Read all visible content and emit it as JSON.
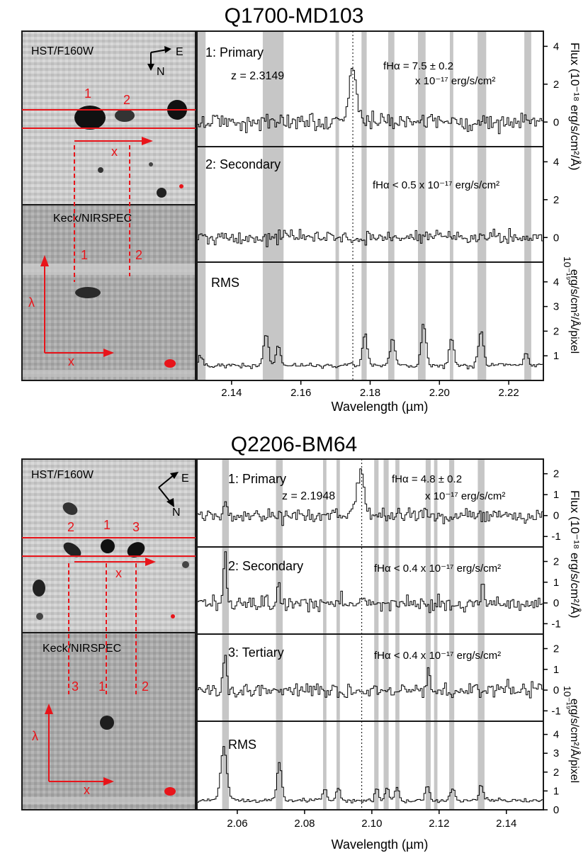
{
  "colors": {
    "marker": "#e8141a",
    "band": "#c6c6c6",
    "frame": "#1a1a1a",
    "line": "#000000"
  },
  "figures": [
    {
      "title": "Q1700-MD103",
      "hst_label": "HST/F160W",
      "keck_label": "Keck/NIRSPEC",
      "compass": {
        "east": "E",
        "north": "N"
      },
      "image_labels": [
        "1",
        "2"
      ],
      "slit_labels": [
        "1",
        "2"
      ],
      "x_symbol": "x",
      "lambda_symbol": "λ",
      "xlabel": "Wavelength (µm)",
      "xticks": [
        "2.14",
        "2.16",
        "2.18",
        "2.20",
        "2.22"
      ],
      "ylabel_flux": "Flux (10⁻¹⁸ erg/s/cm²/Å)",
      "ylabel_rms_1": "10⁻¹⁹",
      "ylabel_rms_2": "erg/s/cm²/Å/pixel",
      "panels": [
        {
          "label": "1: Primary",
          "z": "z = 2.3149",
          "flux": "fHα = 7.5 ± 0.2",
          "flux2": "x 10⁻¹⁷ erg/s/cm²",
          "yticks": [
            "4",
            "2",
            "0"
          ]
        },
        {
          "label": "2: Secondary",
          "flux": "fHα < 0.5 x 10⁻¹⁷ erg/s/cm²",
          "yticks": [
            "4",
            "2",
            "0"
          ]
        },
        {
          "label": "RMS",
          "yticks": [
            "4",
            "3",
            "2",
            "1"
          ]
        }
      ]
    },
    {
      "title": "Q2206-BM64",
      "hst_label": "HST/F160W",
      "keck_label": "Keck/NIRSPEC",
      "compass": {
        "east": "E",
        "north": "N"
      },
      "image_labels": [
        "2",
        "1",
        "3"
      ],
      "slit_labels": [
        "3",
        "1",
        "2"
      ],
      "x_symbol": "x",
      "lambda_symbol": "λ",
      "xlabel": "Wavelength (µm)",
      "xticks": [
        "2.06",
        "2.08",
        "2.10",
        "2.12",
        "2.14"
      ],
      "ylabel_flux": "Flux (10⁻¹⁸ erg/s/cm²/Å)",
      "ylabel_rms_1": "10⁻¹⁹",
      "ylabel_rms_2": "erg/s/cm²/Å/pixel",
      "panels": [
        {
          "label": "1: Primary",
          "z": "z = 2.1948",
          "flux": "fHα = 4.8 ± 0.2",
          "flux2": "x 10⁻¹⁷ erg/s/cm²",
          "yticks": [
            "2",
            "1",
            "0",
            "-1"
          ]
        },
        {
          "label": "2: Secondary",
          "flux": "fHα < 0.4 x 10⁻¹⁷ erg/s/cm²",
          "yticks": [
            "2",
            "1",
            "0",
            "-1"
          ]
        },
        {
          "label": "3: Tertiary",
          "flux": "fHα < 0.4 x 10⁻¹⁷ erg/s/cm²",
          "yticks": [
            "2",
            "1",
            "0",
            "-1"
          ]
        },
        {
          "label": "RMS",
          "yticks": [
            "4",
            "3",
            "2",
            "1",
            "0"
          ]
        }
      ]
    }
  ],
  "chart_data": [
    {
      "type": "line",
      "title": "Q1700-MD103",
      "xlabel": "Wavelength (µm)",
      "xlim": [
        2.13,
        2.23
      ],
      "xticks": [
        2.14,
        2.16,
        2.18,
        2.2,
        2.22
      ],
      "line_center": 2.175,
      "sky_bands": [
        [
          2.13,
          2.1325
        ],
        [
          2.149,
          2.155
        ],
        [
          2.17,
          2.171
        ],
        [
          2.1775,
          2.179
        ],
        [
          2.1852,
          2.187
        ],
        [
          2.1938,
          2.196
        ],
        [
          2.203,
          2.204
        ],
        [
          2.211,
          2.2135
        ],
        [
          2.2245,
          2.2265
        ]
      ],
      "panels": [
        {
          "name": "1: Primary",
          "ylim": [
            -1.3,
            4.8
          ],
          "yticks": [
            0,
            2,
            4
          ],
          "peaks": [
            {
              "x": 2.175,
              "amp": 3.0,
              "width": 0.0011
            }
          ],
          "noise": 0.35
        },
        {
          "name": "2: Secondary",
          "ylim": [
            -1.3,
            4.8
          ],
          "yticks": [
            0,
            2,
            4
          ],
          "peaks": [],
          "noise": 0.25
        },
        {
          "name": "RMS",
          "ylim": [
            0,
            4.8
          ],
          "yticks": [
            1,
            2,
            3,
            4
          ],
          "baseline": 0.6,
          "noise": 0.07,
          "peaks": [
            {
              "x": 2.131,
              "amp": 0.4,
              "width": 0.0006
            },
            {
              "x": 2.15,
              "amp": 1.3,
              "width": 0.0007
            },
            {
              "x": 2.1535,
              "amp": 0.8,
              "width": 0.0007
            },
            {
              "x": 2.1785,
              "amp": 1.3,
              "width": 0.0007
            },
            {
              "x": 2.1865,
              "amp": 1.1,
              "width": 0.0007
            },
            {
              "x": 2.1955,
              "amp": 1.7,
              "width": 0.0007
            },
            {
              "x": 2.2035,
              "amp": 1.1,
              "width": 0.0007
            },
            {
              "x": 2.212,
              "amp": 1.4,
              "width": 0.0007
            },
            {
              "x": 2.225,
              "amp": 0.5,
              "width": 0.0006
            }
          ]
        }
      ]
    },
    {
      "type": "line",
      "title": "Q2206-BM64",
      "xlabel": "Wavelength (µm)",
      "xlim": [
        2.048,
        2.151
      ],
      "xticks": [
        2.06,
        2.08,
        2.1,
        2.12,
        2.14
      ],
      "line_center": 2.097,
      "sky_bands": [
        [
          2.0555,
          2.0575
        ],
        [
          2.0715,
          2.0735
        ],
        [
          2.0855,
          2.0865
        ],
        [
          2.0895,
          2.0905
        ],
        [
          2.1007,
          2.102
        ],
        [
          2.1035,
          2.105
        ],
        [
          2.107,
          2.1082
        ],
        [
          2.116,
          2.1175
        ],
        [
          2.1185,
          2.1195
        ],
        [
          2.123,
          2.1245
        ],
        [
          2.1315,
          2.1335
        ]
      ],
      "panels": [
        {
          "name": "1: Primary",
          "ylim": [
            -1.5,
            2.7
          ],
          "yticks": [
            -1,
            0,
            1,
            2
          ],
          "peaks": [
            {
              "x": 2.0967,
              "amp": 2.1,
              "width": 0.0011
            },
            {
              "x": 2.0565,
              "amp": 0.9,
              "width": 0.0004
            }
          ],
          "noise": 0.25
        },
        {
          "name": "2: Secondary",
          "ylim": [
            -1.5,
            2.7
          ],
          "yticks": [
            -1,
            0,
            1,
            2
          ],
          "peaks": [
            {
              "x": 2.0563,
              "amp": 2.6,
              "width": 0.0004
            },
            {
              "x": 2.0723,
              "amp": 1.0,
              "width": 0.0004
            },
            {
              "x": 2.133,
              "amp": 1.0,
              "width": 0.0004
            }
          ],
          "noise": 0.3
        },
        {
          "name": "3: Tertiary",
          "ylim": [
            -1.5,
            2.7
          ],
          "yticks": [
            -1,
            0,
            1,
            2
          ],
          "peaks": [
            {
              "x": 2.0563,
              "amp": 2.0,
              "width": 0.0004
            },
            {
              "x": 2.117,
              "amp": 1.0,
              "width": 0.0004
            }
          ],
          "noise": 0.25
        },
        {
          "name": "RMS",
          "ylim": [
            0,
            4.7
          ],
          "yticks": [
            0,
            1,
            2,
            3,
            4
          ],
          "baseline": 0.5,
          "noise": 0.08,
          "peaks": [
            {
              "x": 2.056,
              "amp": 2.8,
              "width": 0.0009
            },
            {
              "x": 2.0725,
              "amp": 2.0,
              "width": 0.0007
            },
            {
              "x": 2.086,
              "amp": 0.6,
              "width": 0.0006
            },
            {
              "x": 2.09,
              "amp": 0.7,
              "width": 0.0006
            },
            {
              "x": 2.1015,
              "amp": 0.6,
              "width": 0.0006
            },
            {
              "x": 2.1045,
              "amp": 0.6,
              "width": 0.0006
            },
            {
              "x": 2.1075,
              "amp": 0.7,
              "width": 0.0006
            },
            {
              "x": 2.1165,
              "amp": 0.8,
              "width": 0.0006
            },
            {
              "x": 2.124,
              "amp": 0.7,
              "width": 0.0006
            },
            {
              "x": 2.1325,
              "amp": 0.8,
              "width": 0.0006
            }
          ]
        }
      ]
    }
  ]
}
